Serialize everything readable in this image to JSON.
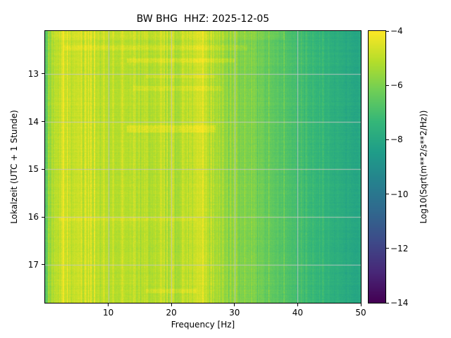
{
  "chart_data": {
    "type": "heatmap",
    "title": "BW BHG  HHZ: 2025-12-05",
    "xlabel": "Frequency [Hz]",
    "ylabel": "Lokalzeit (UTC + 1 Stunde)",
    "colorbar_label": "Log10(Sqrt(m**2/s**2/Hz))",
    "colormap": "viridis",
    "grid": true,
    "x_range": [
      0,
      50
    ],
    "x_ticks": [
      10,
      20,
      30,
      40,
      50
    ],
    "y_range": [
      12.1,
      17.8
    ],
    "y_ticks": [
      13,
      14,
      15,
      16,
      17
    ],
    "colorbar_range": [
      -14,
      -4
    ],
    "colorbar_ticks": [
      -4,
      -6,
      -8,
      -10,
      -12,
      -14
    ],
    "freq_profile": {
      "freq_hz": [
        0.2,
        1.0,
        3.0,
        8.0,
        15.0,
        20.0,
        24.0,
        28.0,
        32.0,
        36.0,
        40.0,
        44.0,
        48.0,
        50.0
      ],
      "log10_sqrt_psd": [
        -6.4,
        -5.4,
        -4.9,
        -5.0,
        -5.1,
        -5.3,
        -5.0,
        -5.6,
        -6.0,
        -6.5,
        -7.0,
        -7.5,
        -7.9,
        -8.1
      ]
    },
    "events": [
      {
        "t": 12.2,
        "dt": 0.08,
        "f0": 1,
        "f1": 38,
        "boost": 0.3
      },
      {
        "t": 12.45,
        "dt": 0.06,
        "f0": 3,
        "f1": 32,
        "boost": 0.4
      },
      {
        "t": 12.72,
        "dt": 0.05,
        "f0": 13,
        "f1": 30,
        "boost": 0.55
      },
      {
        "t": 13.05,
        "dt": 0.04,
        "f0": 16,
        "f1": 27,
        "boost": 0.35
      },
      {
        "t": 13.3,
        "dt": 0.05,
        "f0": 14,
        "f1": 28,
        "boost": 0.4
      },
      {
        "t": 14.15,
        "dt": 0.07,
        "f0": 13,
        "f1": 27,
        "boost": 0.6
      },
      {
        "t": 16.05,
        "dt": 0.04,
        "f0": 2,
        "f1": 24,
        "boost": 0.35
      },
      {
        "t": 17.55,
        "dt": 0.05,
        "f0": 16,
        "f1": 24,
        "boost": 0.45
      }
    ],
    "stripes": [
      {
        "f": 2.2,
        "w": 0.5,
        "boost": 0.3
      },
      {
        "f": 5.2,
        "w": 0.35,
        "boost": 0.2
      },
      {
        "f": 18.6,
        "w": 0.5,
        "boost": 0.25
      },
      {
        "f": 24.6,
        "w": 0.9,
        "boost": 0.4
      },
      {
        "f": 27.2,
        "w": 0.4,
        "boost": 0.2
      },
      {
        "f": 34.0,
        "w": 0.6,
        "boost": 0.15
      }
    ],
    "texture": {
      "column_noise": 0.45,
      "pixel_noise": 0.3,
      "row_noise": 0.12
    },
    "grid_color": "#c8c8c8",
    "viridis_anchors": [
      "#440154",
      "#482878",
      "#3e4a89",
      "#31688e",
      "#26828e",
      "#1f9e89",
      "#35b779",
      "#6ece58",
      "#b5de2b",
      "#fde725"
    ]
  }
}
